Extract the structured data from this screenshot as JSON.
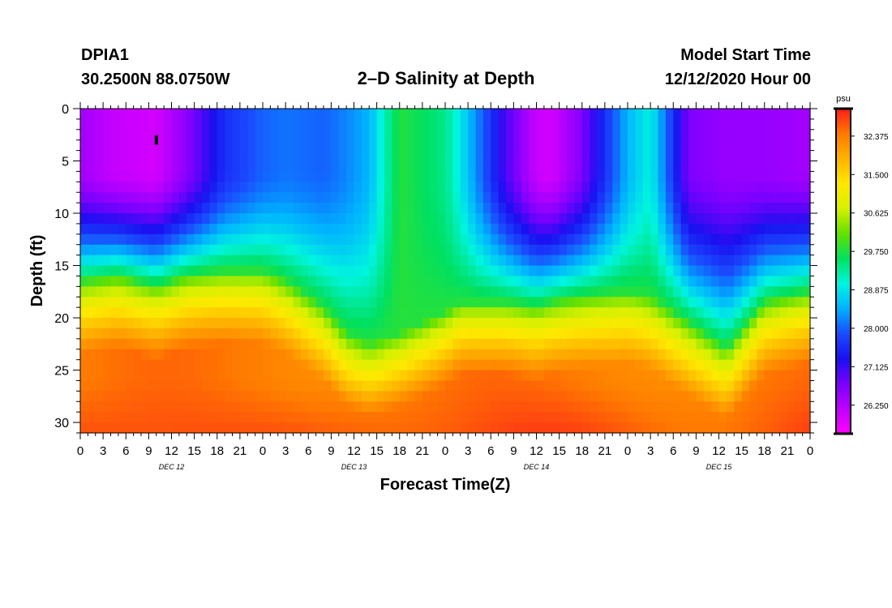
{
  "header": {
    "station_id": "DPIA1",
    "station_coords": "30.2500N 88.0750W",
    "title": "2–D Salinity at Depth",
    "start_label": "Model Start Time",
    "start_value": "12/12/2020 Hour 00"
  },
  "chart_data": {
    "type": "heatmap",
    "title": "2–D Salinity at Depth",
    "xlabel": "Forecast Time(Z)",
    "ylabel": "Depth (ft)",
    "x_range_hours": [
      0,
      96
    ],
    "y_range_ft": [
      0,
      31
    ],
    "y_inverted": true,
    "x_tick_labels": [
      "0",
      "3",
      "6",
      "9",
      "12",
      "15",
      "18",
      "21",
      "0",
      "3",
      "6",
      "9",
      "12",
      "15",
      "18",
      "21",
      "0",
      "3",
      "6",
      "9",
      "12",
      "15",
      "18",
      "21",
      "0",
      "3",
      "6",
      "9",
      "12",
      "15",
      "18",
      "21",
      "0"
    ],
    "y_tick_labels": [
      "0",
      "5",
      "10",
      "15",
      "20",
      "25",
      "30"
    ],
    "y_tick_values": [
      0,
      5,
      10,
      15,
      20,
      25,
      30
    ],
    "day_labels": [
      {
        "label": "DEC 12",
        "hour": 12
      },
      {
        "label": "DEC 13",
        "hour": 36
      },
      {
        "label": "DEC 14",
        "hour": 60
      },
      {
        "label": "DEC 15",
        "hour": 84
      }
    ],
    "colorbar": {
      "unit": "psu",
      "min": 25.6,
      "max": 33.0,
      "tick_labels": [
        "32.375",
        "31.500",
        "30.625",
        "29.750",
        "28.875",
        "28.000",
        "27.125",
        "26.250"
      ],
      "tick_values": [
        32.375,
        31.5,
        30.625,
        29.75,
        28.875,
        28.0,
        27.125,
        26.25
      ],
      "stops": [
        "#ff1c1c",
        "#ff7a00",
        "#ffb300",
        "#ffe800",
        "#d8f000",
        "#64e000",
        "#00e060",
        "#00f5e0",
        "#00b0ff",
        "#1a4cff",
        "#1a10f0",
        "#7a00ff",
        "#c000ff",
        "#ff00ff"
      ]
    },
    "salinity_profile_anchors": {
      "hours": [
        0,
        5,
        10,
        14,
        19,
        24,
        27,
        32,
        35,
        38,
        42,
        48,
        50,
        56,
        60,
        62,
        66,
        72,
        75,
        80,
        85,
        90,
        96
      ],
      "interface_depth_ft": [
        16.5,
        16,
        17,
        16,
        15.5,
        15.5,
        16.5,
        19,
        21.5,
        22.5,
        21.5,
        19.5,
        18.5,
        18.5,
        19,
        18.5,
        18,
        17.5,
        18,
        20.5,
        23,
        18.5,
        17.5
      ],
      "surface_salinity_psu": [
        26.4,
        26.1,
        26.0,
        26.6,
        27.6,
        28.0,
        28.1,
        28.0,
        28.2,
        28.5,
        29.8,
        29.4,
        28.9,
        27.0,
        26.1,
        26.0,
        26.7,
        28.5,
        29.0,
        26.7,
        26.5,
        26.5,
        26.4
      ],
      "surface_layer_thickness_ft": [
        6,
        6,
        6,
        6,
        6,
        6,
        6,
        6,
        6,
        6,
        6,
        6,
        6,
        6,
        6,
        6,
        6,
        6,
        6,
        6,
        6,
        6,
        6
      ]
    },
    "marker": {
      "hour": 10,
      "depth_ft": 3
    }
  }
}
